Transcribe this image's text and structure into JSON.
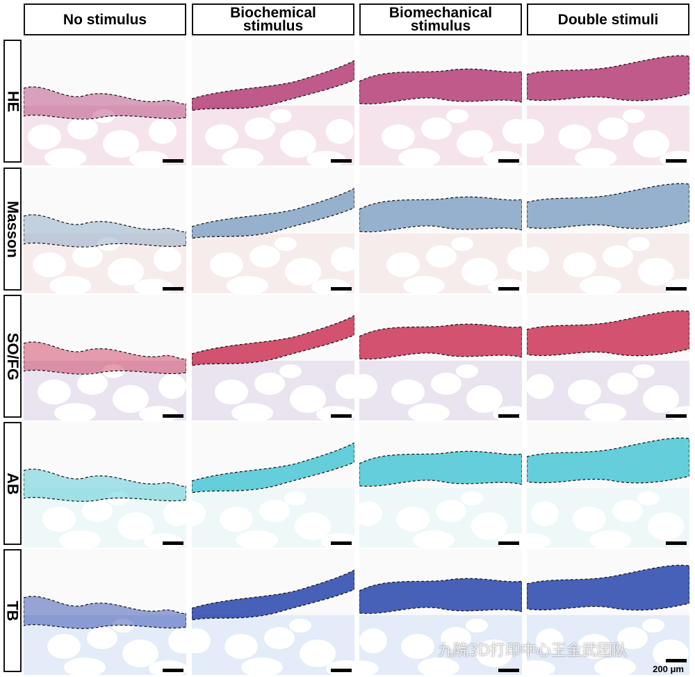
{
  "columns": [
    {
      "line1": "No stimulus",
      "line2": ""
    },
    {
      "line1": "Biochemical",
      "line2": "stimulus"
    },
    {
      "line1": "Biomechanical",
      "line2": "stimulus"
    },
    {
      "line1": "Double stimuli",
      "line2": ""
    }
  ],
  "rows": [
    "HE",
    "Masson",
    "SO/FG",
    "AB",
    "TB"
  ],
  "scale_label": "200 μm",
  "watermark": "九院3D打印中心王金武团队",
  "stain_colors": {
    "HE": "#b0326f",
    "Masson": "#7d9fc2",
    "SO/FG": "#c8284e",
    "AB": "#3fc3d2",
    "TB": "#1a3aa8"
  }
}
